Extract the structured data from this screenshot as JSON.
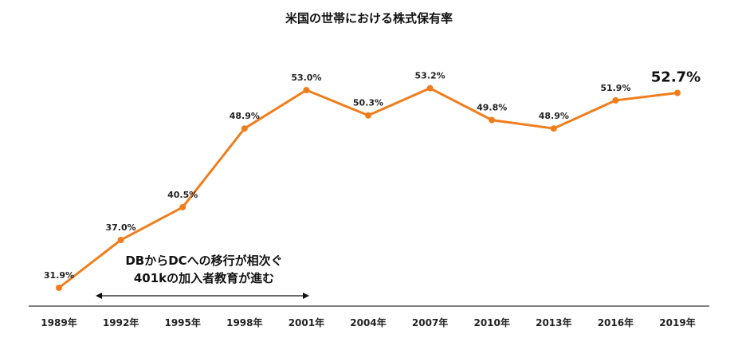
{
  "chart_data": {
    "type": "line",
    "title": "米国の世帯における株式保有率",
    "categories": [
      "1989年",
      "1992年",
      "1995年",
      "1998年",
      "2001年",
      "2004年",
      "2007年",
      "2010年",
      "2013年",
      "2016年",
      "2019年"
    ],
    "values": [
      31.9,
      37.0,
      40.5,
      48.9,
      53.0,
      50.3,
      53.2,
      49.8,
      48.9,
      51.9,
      52.7
    ],
    "data_labels": [
      "31.9%",
      "37.0%",
      "40.5%",
      "48.9%",
      "53.0%",
      "50.3%",
      "53.2%",
      "49.8%",
      "48.9%",
      "51.9%",
      "52.7%"
    ],
    "highlight_index": 10,
    "annotation": {
      "lines": [
        "DBからDCへの移行が相次ぐ",
        "401kの加入者教育が進む"
      ],
      "from": "1992年",
      "to": "2001年"
    },
    "series_color": "#F07D1C",
    "axis_color": "#333333",
    "ylim": [
      30,
      55
    ],
    "grid": false,
    "legend": "none"
  }
}
